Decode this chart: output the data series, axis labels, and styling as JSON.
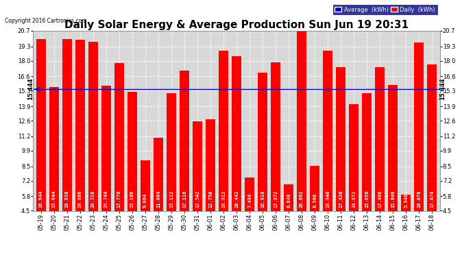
{
  "title": "Daily Solar Energy & Average Production Sun Jun 19 20:31",
  "copyright": "Copyright 2016 Cartronics.com",
  "categories": [
    "05-19",
    "05-20",
    "05-21",
    "05-22",
    "05-23",
    "05-24",
    "05-25",
    "05-26",
    "05-27",
    "05-28",
    "05-29",
    "05-30",
    "05-31",
    "06-01",
    "06-02",
    "06-03",
    "06-04",
    "06-05",
    "06-06",
    "06-07",
    "06-08",
    "06-09",
    "06-10",
    "06-11",
    "06-12",
    "06-13",
    "06-14",
    "06-15",
    "06-16",
    "06-17",
    "06-18"
  ],
  "values": [
    19.944,
    15.644,
    19.938,
    19.886,
    19.728,
    15.744,
    17.776,
    15.18,
    9.064,
    11.064,
    15.112,
    17.116,
    12.542,
    12.75,
    18.912,
    18.442,
    7.484,
    16.918,
    17.872,
    6.848,
    20.692,
    8.56,
    18.94,
    17.436,
    14.072,
    15.056,
    17.4,
    15.84,
    5.948,
    19.678,
    17.674
  ],
  "average": 15.444,
  "bar_color": "#FF0000",
  "avg_line_color": "#0000CC",
  "background_color": "#FFFFFF",
  "plot_bg_color": "#D8D8D8",
  "grid_color": "#FFFFFF",
  "ymin": 4.5,
  "ymax": 20.7,
  "yticks": [
    4.5,
    5.8,
    7.2,
    8.5,
    9.9,
    11.2,
    12.6,
    13.9,
    15.3,
    16.6,
    18.0,
    19.3,
    20.7
  ],
  "title_fontsize": 11,
  "tick_fontsize": 6,
  "bar_value_fontsize": 5,
  "legend_avg_color": "#0000CC",
  "legend_daily_color": "#FF0000"
}
